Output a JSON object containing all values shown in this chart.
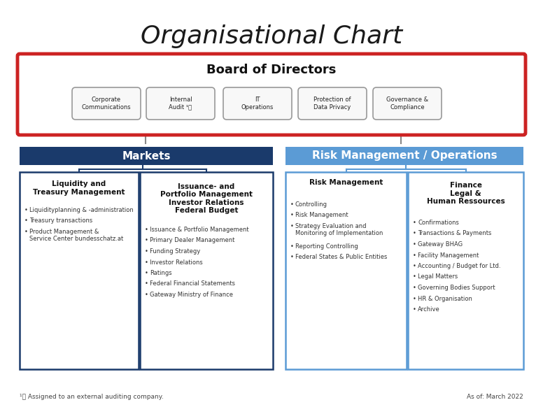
{
  "title": "Organisational Chart",
  "title_fontsize": 26,
  "background_color": "#ffffff",
  "board_title": "Board of Directors",
  "board_border_color": "#cc2222",
  "board_fill_color": "#ffffff",
  "board_divisions": [
    "Corporate\nCommunications",
    "Internal\nAudit ¹⧠",
    "IT\nOperations",
    "Protection of\nData Privacy",
    "Governance &\nCompliance"
  ],
  "section_left_title": "Markets",
  "section_right_title": "Risk Management / Operations",
  "section_markets_fill": "#1a3a6b",
  "section_markets_text": "#ffffff",
  "section_risk_fill": "#5b9bd5",
  "section_risk_text": "#ffffff",
  "box_border_left": "#1a3a6b",
  "box_border_right": "#5b9bd5",
  "col1_title": "Liquidity and\nTreasury Management",
  "col1_items": [
    "Liquidityplanning & -administration",
    "Treasury transactions",
    "Product Management &\nService Center bundesschatz.at"
  ],
  "col2_title": "Issuance- and\nPortfolio Management\nInvestor Relations\nFederal Budget",
  "col2_items": [
    "Issuance & Portfolio Management",
    "Primary Dealer Management",
    "Funding Strategy",
    "Investor Relations",
    "Ratings",
    "Federal Financial Statements",
    "Gateway Ministry of Finance"
  ],
  "col3_title": "Risk Management",
  "col3_items": [
    "Controlling",
    "Risk Management",
    "Strategy Evaluation and\nMonitoring of Implementation",
    "Reporting Controlling",
    "Federal States & Public Entities"
  ],
  "col4_title": "Finance\nLegal &\nHuman Ressources",
  "col4_items": [
    "Confirmations",
    "Transactions & Payments",
    "Gateway BHAG",
    "Facility Management",
    "Accounting / Budget for Ltd.",
    "Legal Matters",
    "Governing Bodies Support",
    "HR & Organisation",
    "Archive"
  ],
  "footnote": "¹⧠ Assigned to an external auditing company.",
  "asof": "As of: March 2022",
  "division_border_color": "#999999",
  "division_fill_color": "#f8f8f8",
  "line_color_left": "#1a3a6b",
  "line_color_right": "#5b9bd5",
  "line_color_board": "#888888"
}
